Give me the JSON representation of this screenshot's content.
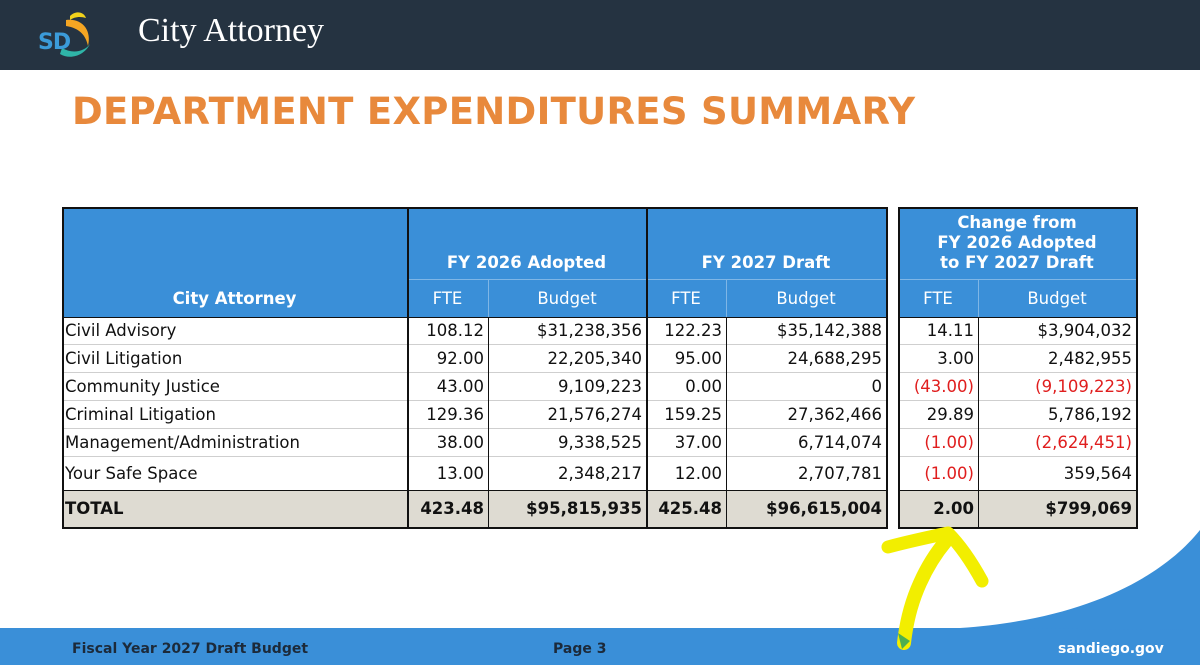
{
  "header": {
    "logo_text": "SD",
    "app_title": "City Attorney"
  },
  "page_title": "DEPARTMENT EXPENDITURES SUMMARY",
  "table": {
    "row_header": "City Attorney",
    "groups": [
      "FY 2026 Adopted",
      "FY 2027 Draft",
      "Change from FY 2026 Adopted to FY 2027 Draft"
    ],
    "change_group_lines": [
      "Change from",
      "FY 2026 Adopted",
      "to FY 2027 Draft"
    ],
    "subheaders": [
      "FTE",
      "Budget",
      "FTE",
      "Budget",
      "FTE",
      "Budget"
    ],
    "rows": [
      {
        "name": "Civil Advisory",
        "fte26": "108.12",
        "bud26": "$31,238,356",
        "fte27": "122.23",
        "bud27": "$35,142,388",
        "dfte": "14.11",
        "dbud": "$3,904,032",
        "dfte_neg": false,
        "dbud_neg": false
      },
      {
        "name": "Civil Litigation",
        "fte26": "92.00",
        "bud26": "22,205,340",
        "fte27": "95.00",
        "bud27": "24,688,295",
        "dfte": "3.00",
        "dbud": "2,482,955",
        "dfte_neg": false,
        "dbud_neg": false
      },
      {
        "name": "Community Justice",
        "fte26": "43.00",
        "bud26": "9,109,223",
        "fte27": "0.00",
        "bud27": "0",
        "dfte": "(43.00)",
        "dbud": "(9,109,223)",
        "dfte_neg": true,
        "dbud_neg": true
      },
      {
        "name": "Criminal Litigation",
        "fte26": "129.36",
        "bud26": "21,576,274",
        "fte27": "159.25",
        "bud27": "27,362,466",
        "dfte": "29.89",
        "dbud": "5,786,192",
        "dfte_neg": false,
        "dbud_neg": false
      },
      {
        "name": "Management/Administration",
        "fte26": "38.00",
        "bud26": "9,338,525",
        "fte27": "37.00",
        "bud27": "6,714,074",
        "dfte": "(1.00)",
        "dbud": "(2,624,451)",
        "dfte_neg": true,
        "dbud_neg": true
      },
      {
        "name": "Your Safe Space",
        "fte26": "13.00",
        "bud26": "2,348,217",
        "fte27": "12.00",
        "bud27": "2,707,781",
        "dfte": "(1.00)",
        "dbud": "359,564",
        "dfte_neg": true,
        "dbud_neg": false
      }
    ],
    "total": {
      "name": "TOTAL",
      "fte26": "423.48",
      "bud26": "$95,815,935",
      "fte27": "425.48",
      "bud27": "$96,615,004",
      "dfte": "2.00",
      "dbud": "$799,069"
    }
  },
  "footer": {
    "left": "Fiscal Year 2027 Draft Budget",
    "center": "Page 3",
    "right": "sandiego.gov"
  },
  "colors": {
    "header_bar": "#253341",
    "title": "#e8893c",
    "table_header": "#3a8fd8",
    "total_row": "#dedbd2",
    "negative": "#e01e1e",
    "annotation": "#f2ee00"
  },
  "annotation": {
    "shape": "hand-drawn-arrow",
    "points_to": "total-change-fte"
  }
}
